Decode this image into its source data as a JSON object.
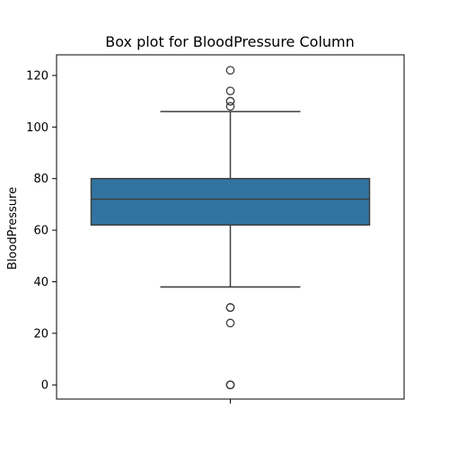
{
  "chart_data": {
    "type": "box",
    "title": "Box plot for BloodPressure Column",
    "xlabel": "",
    "ylabel": "BloodPressure",
    "ylim": [
      -5.5,
      128.0
    ],
    "yticks": [
      0,
      20,
      40,
      60,
      80,
      100,
      120
    ],
    "grid": false,
    "box": {
      "q1": 62,
      "median": 72,
      "q3": 80,
      "whisker_low": 38,
      "whisker_high": 106,
      "outliers": [
        0,
        0,
        0,
        24,
        30,
        30,
        108,
        110,
        110,
        114,
        122
      ]
    },
    "colors": {
      "box_fill": "#3274a1",
      "line": "#3f3f3f",
      "axis": "#000000"
    }
  }
}
